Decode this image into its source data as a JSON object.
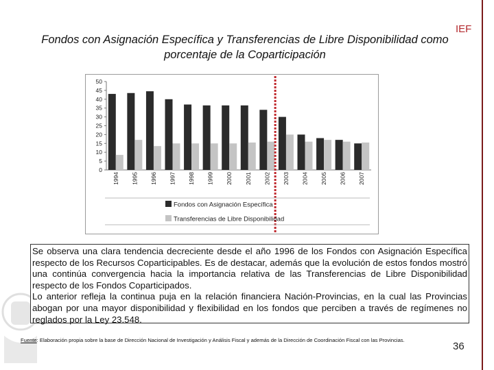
{
  "brand": "IEF",
  "slide_title": "Fondos con Asignación Específica y Transferencias de Libre Disponibilidad como porcentaje de la Coparticipación",
  "note": {
    "p1": "Se observa una clara tendencia decreciente desde el año 1996 de los Fondos con Asignación Específica respecto de los Recursos Coparticipables. Es de destacar, además que la evolución de estos fondos mostró una continúa convergencia hacia la importancia relativa de las Transferencias de Libre Disponibilidad respecto de los Fondos Coparticipados.",
    "p2": "Lo anterior refleja la continua puja en la relación financiera Nación-Provincias, en la cual las Provincias abogan por una mayor disponibilidad y flexibilidad en los fondos que perciben a través de regímenes no reglados por la Ley 23.548."
  },
  "source": {
    "label": "Fuente",
    "text": ": Elaboración propia sobre la base de Dirección Nacional de Investigación y Análisis Fiscal y además de la Dirección de Coordinación Fiscal con las Provincias."
  },
  "page_number": "36",
  "chart_data": {
    "type": "bar",
    "categories": [
      "1994",
      "1995",
      "1996",
      "1997",
      "1998",
      "1999",
      "2000",
      "2001",
      "2002",
      "2003",
      "2004",
      "2005",
      "2006",
      "2007"
    ],
    "series": [
      {
        "name": "Fondos con Asignación Específica",
        "color": "#2b2b2b",
        "values": [
          43,
          43.5,
          44.5,
          40,
          37,
          36.5,
          36.5,
          36.5,
          34,
          30,
          20,
          18,
          17,
          15
        ]
      },
      {
        "name": "Transferencias de Libre Disponibilidad",
        "color": "#c4c4c4",
        "values": [
          8.5,
          17,
          13.5,
          15,
          15,
          15,
          15,
          15.5,
          16,
          20,
          16,
          17,
          16,
          15.5
        ]
      }
    ],
    "yticks": [
      0,
      5,
      10,
      15,
      20,
      25,
      30,
      35,
      40,
      45,
      50
    ],
    "ylim": [
      0,
      50
    ],
    "marker_after": "2002",
    "marker_color": "#c0282d",
    "legend_position": "bottom"
  }
}
